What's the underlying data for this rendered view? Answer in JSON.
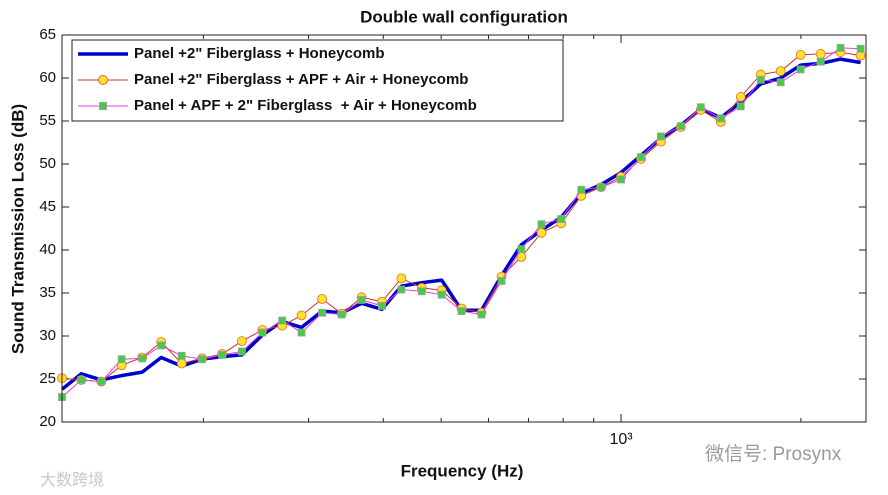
{
  "chart_data": {
    "type": "line",
    "title": "Double wall configuration",
    "xlabel": "Frequency (Hz)",
    "ylabel": "Sound Transmission Loss (dB)",
    "xscale": "log",
    "xlim": [
      116,
      2570
    ],
    "ylim": [
      20,
      65
    ],
    "xticks": [
      {
        "value": 1000,
        "label": "10³"
      }
    ],
    "yticks": [
      20,
      25,
      30,
      35,
      40,
      45,
      50,
      55,
      60,
      65
    ],
    "legend": "upper left",
    "x": [
      116,
      125,
      135,
      146,
      158,
      170,
      184,
      199,
      215,
      232,
      251,
      271,
      292,
      316,
      341,
      368,
      398,
      429,
      464,
      501,
      541,
      584,
      631,
      681,
      736,
      794,
      858,
      926,
      1000,
      1080,
      1166,
      1259,
      1360,
      1469,
      1586,
      1713,
      1850,
      1998,
      2158,
      2330,
      2517
    ],
    "series": [
      {
        "name": "Panel +2\" Fiberglass + Honeycomb",
        "color": "#0000cc",
        "width": 3.5,
        "values": [
          23.8,
          25.6,
          24.9,
          25.4,
          25.8,
          27.5,
          26.5,
          27.3,
          27.6,
          27.8,
          30.1,
          31.7,
          31.0,
          32.9,
          32.7,
          33.8,
          33.1,
          35.8,
          36.2,
          36.5,
          33.0,
          33.0,
          37.0,
          40.6,
          42.3,
          43.8,
          46.6,
          47.6,
          49.0,
          51.0,
          53.0,
          54.5,
          56.4,
          55.4,
          57.2,
          59.3,
          60.0,
          61.5,
          61.7,
          62.2,
          61.8
        ]
      },
      {
        "name": "Panel +2\" Fiberglass + APF + Air + Honeycomb",
        "color": "#c0392b",
        "width": 1,
        "marker": "circle",
        "marker_color": "#ffe033",
        "marker_edge": "#e07020",
        "values": [
          25.1,
          24.9,
          24.7,
          26.6,
          27.5,
          29.3,
          26.8,
          27.4,
          27.9,
          29.4,
          30.7,
          31.2,
          32.4,
          34.3,
          32.6,
          34.5,
          34.0,
          36.7,
          35.6,
          35.3,
          33.2,
          32.7,
          36.9,
          39.2,
          42.0,
          43.1,
          46.3,
          47.3,
          48.5,
          50.6,
          52.6,
          54.3,
          56.3,
          54.9,
          57.8,
          60.4,
          60.8,
          62.7,
          62.8,
          63.0,
          62.6
        ]
      },
      {
        "name": "Panel + APF + 2\" Fiberglass  + Air + Honeycomb",
        "color": "#e040e0",
        "width": 1,
        "marker": "square",
        "marker_color": "#44cc44",
        "marker_edge": "#a0a0a0",
        "values": [
          22.9,
          24.9,
          24.7,
          27.3,
          27.4,
          28.9,
          27.7,
          27.3,
          27.8,
          28.2,
          30.4,
          31.8,
          30.4,
          32.7,
          32.5,
          34.2,
          33.5,
          35.4,
          35.2,
          34.8,
          32.9,
          32.5,
          36.4,
          40.1,
          43.0,
          43.6,
          47.0,
          47.3,
          48.2,
          50.8,
          53.2,
          54.4,
          56.6,
          55.3,
          56.7,
          59.8,
          59.5,
          61.0,
          61.9,
          63.5,
          63.4
        ]
      }
    ],
    "watermarks": [
      "微信号: Prosynx",
      "大数跨境"
    ]
  }
}
